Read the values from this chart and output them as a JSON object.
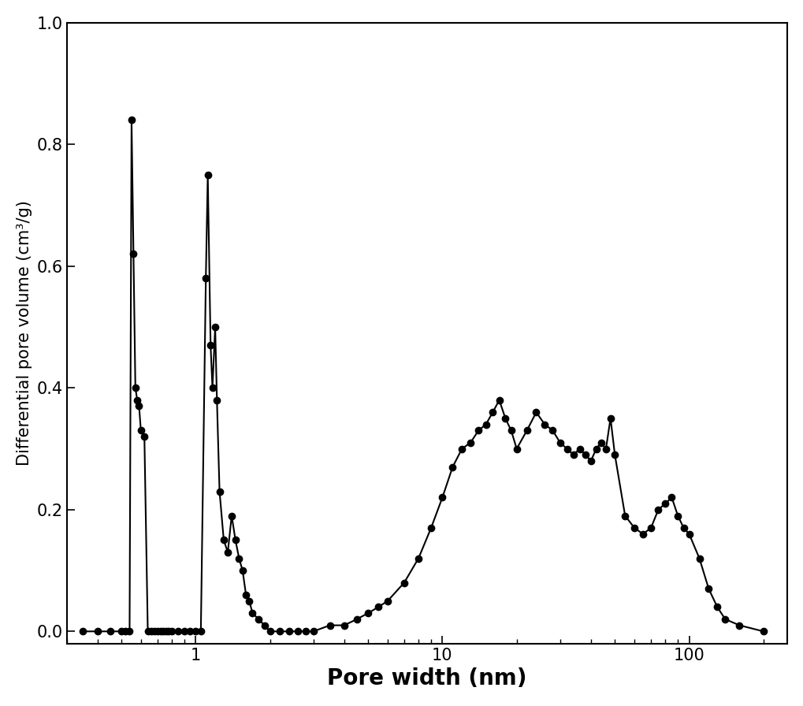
{
  "x": [
    0.35,
    0.4,
    0.45,
    0.5,
    0.52,
    0.54,
    0.55,
    0.56,
    0.57,
    0.58,
    0.59,
    0.6,
    0.62,
    0.64,
    0.66,
    0.68,
    0.7,
    0.72,
    0.74,
    0.76,
    0.78,
    0.8,
    0.85,
    0.9,
    0.95,
    1.0,
    1.05,
    1.1,
    1.12,
    1.15,
    1.17,
    1.2,
    1.22,
    1.25,
    1.3,
    1.35,
    1.4,
    1.45,
    1.5,
    1.55,
    1.6,
    1.65,
    1.7,
    1.8,
    1.9,
    2.0,
    2.2,
    2.4,
    2.6,
    2.8,
    3.0,
    3.5,
    4.0,
    4.5,
    5.0,
    5.5,
    6.0,
    7.0,
    8.0,
    9.0,
    10.0,
    11.0,
    12.0,
    13.0,
    14.0,
    15.0,
    16.0,
    17.0,
    18.0,
    19.0,
    20.0,
    22.0,
    24.0,
    26.0,
    28.0,
    30.0,
    32.0,
    34.0,
    36.0,
    38.0,
    40.0,
    42.0,
    44.0,
    46.0,
    48.0,
    50.0,
    55.0,
    60.0,
    65.0,
    70.0,
    75.0,
    80.0,
    85.0,
    90.0,
    95.0,
    100.0,
    110.0,
    120.0,
    130.0,
    140.0,
    160.0,
    200.0
  ],
  "y": [
    0.0,
    0.0,
    0.0,
    0.0,
    0.0,
    0.0,
    0.84,
    0.62,
    0.4,
    0.38,
    0.37,
    0.33,
    0.32,
    0.0,
    0.0,
    0.0,
    0.0,
    0.0,
    0.0,
    0.0,
    0.0,
    0.0,
    0.0,
    0.0,
    0.0,
    0.0,
    0.0,
    0.58,
    0.75,
    0.47,
    0.4,
    0.5,
    0.38,
    0.23,
    0.15,
    0.13,
    0.19,
    0.15,
    0.12,
    0.1,
    0.06,
    0.05,
    0.03,
    0.02,
    0.01,
    0.0,
    0.0,
    0.0,
    0.0,
    0.0,
    0.0,
    0.01,
    0.01,
    0.02,
    0.03,
    0.04,
    0.05,
    0.08,
    0.12,
    0.17,
    0.22,
    0.27,
    0.3,
    0.31,
    0.33,
    0.34,
    0.36,
    0.38,
    0.35,
    0.33,
    0.3,
    0.33,
    0.36,
    0.34,
    0.33,
    0.31,
    0.3,
    0.29,
    0.3,
    0.29,
    0.28,
    0.3,
    0.31,
    0.3,
    0.35,
    0.29,
    0.19,
    0.17,
    0.16,
    0.17,
    0.2,
    0.21,
    0.22,
    0.19,
    0.17,
    0.16,
    0.12,
    0.07,
    0.04,
    0.02,
    0.01,
    0.0
  ],
  "xlabel": "Pore width (nm)",
  "ylabel": "Differential pore volume (cm³/g)",
  "xlim_lo": 0.3,
  "xlim_hi": 250,
  "ylim_lo": -0.02,
  "ylim_hi": 1.0,
  "yticks": [
    0.0,
    0.2,
    0.4,
    0.6,
    0.8,
    1.0
  ],
  "marker": "o",
  "markersize": 6,
  "linewidth": 1.5,
  "color": "#000000",
  "background_color": "#ffffff",
  "xlabel_fontsize": 20,
  "ylabel_fontsize": 15,
  "tick_fontsize": 15
}
